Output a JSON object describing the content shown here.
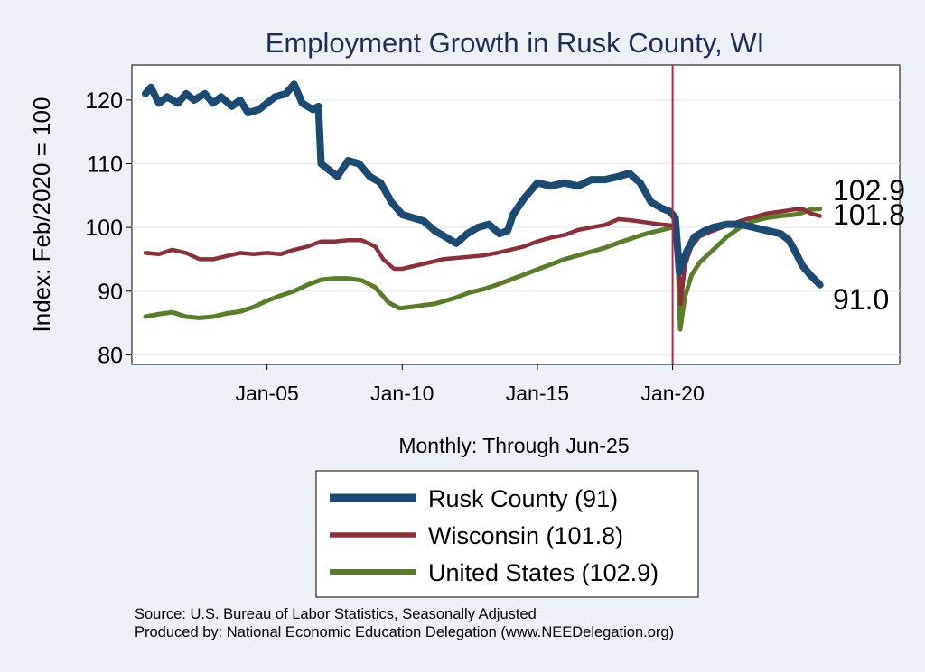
{
  "chart_data": {
    "type": "line",
    "title": "Employment Growth in Rusk  County, WI",
    "ylabel": "Index: Feb/2020 = 100",
    "xlabel": "Monthly: Through Jun-25",
    "ylim": [
      78.5,
      125.5
    ],
    "xlim": [
      2000.0,
      2028.4
    ],
    "yticks": [
      80,
      90,
      100,
      110,
      120
    ],
    "xticks": [
      {
        "label": "Jan-05",
        "value": 2005.0
      },
      {
        "label": "Jan-10",
        "value": 2010.0
      },
      {
        "label": "Jan-15",
        "value": 2015.0
      },
      {
        "label": "Jan-20",
        "value": 2020.0
      }
    ],
    "reference_line_x": 2020.0,
    "grid": true,
    "legend_position": "bottom",
    "series": [
      {
        "name": "Rusk  County (91)",
        "color": "#1b4a72",
        "end_label": "91.0",
        "points": [
          [
            2000.5,
            121
          ],
          [
            2000.7,
            122
          ],
          [
            2001.0,
            119.5
          ],
          [
            2001.3,
            120.5
          ],
          [
            2001.7,
            119.5
          ],
          [
            2002.0,
            121
          ],
          [
            2002.3,
            120
          ],
          [
            2002.7,
            121
          ],
          [
            2003.0,
            119.5
          ],
          [
            2003.3,
            120.5
          ],
          [
            2003.7,
            119
          ],
          [
            2004.0,
            120
          ],
          [
            2004.3,
            118
          ],
          [
            2004.7,
            118.5
          ],
          [
            2005.0,
            119.5
          ],
          [
            2005.3,
            120.5
          ],
          [
            2005.7,
            121
          ],
          [
            2006.0,
            122.5
          ],
          [
            2006.3,
            119.5
          ],
          [
            2006.7,
            118.5
          ],
          [
            2006.9,
            119
          ],
          [
            2007.0,
            110
          ],
          [
            2007.3,
            109
          ],
          [
            2007.6,
            108
          ],
          [
            2008.0,
            110.5
          ],
          [
            2008.4,
            110
          ],
          [
            2008.8,
            108
          ],
          [
            2009.2,
            107
          ],
          [
            2009.6,
            104
          ],
          [
            2010.0,
            102
          ],
          [
            2010.4,
            101.5
          ],
          [
            2010.8,
            101
          ],
          [
            2011.2,
            99.5
          ],
          [
            2011.6,
            98.5
          ],
          [
            2012.0,
            97.5
          ],
          [
            2012.4,
            99
          ],
          [
            2012.8,
            100
          ],
          [
            2013.2,
            100.5
          ],
          [
            2013.6,
            99
          ],
          [
            2013.9,
            99.5
          ],
          [
            2014.1,
            102
          ],
          [
            2014.5,
            104.5
          ],
          [
            2015.0,
            107
          ],
          [
            2015.5,
            106.5
          ],
          [
            2016.0,
            107
          ],
          [
            2016.5,
            106.5
          ],
          [
            2017.0,
            107.5
          ],
          [
            2017.5,
            107.5
          ],
          [
            2018.0,
            108
          ],
          [
            2018.4,
            108.5
          ],
          [
            2018.8,
            107
          ],
          [
            2019.2,
            104
          ],
          [
            2019.6,
            103
          ],
          [
            2019.9,
            102.5
          ],
          [
            2020.1,
            101.5
          ],
          [
            2020.25,
            93
          ],
          [
            2020.5,
            96
          ],
          [
            2020.8,
            98.5
          ],
          [
            2021.2,
            99.5
          ],
          [
            2021.5,
            100
          ],
          [
            2022.0,
            100.5
          ],
          [
            2022.5,
            100.5
          ],
          [
            2023.0,
            100
          ],
          [
            2023.5,
            99.5
          ],
          [
            2024.0,
            99
          ],
          [
            2024.3,
            98
          ],
          [
            2024.5,
            96.5
          ],
          [
            2024.8,
            94
          ],
          [
            2025.1,
            92.5
          ],
          [
            2025.45,
            91
          ]
        ]
      },
      {
        "name": "Wisconsin (101.8)",
        "color": "#8c2f39",
        "end_label": "101.8",
        "points": [
          [
            2000.5,
            96
          ],
          [
            2001.0,
            95.8
          ],
          [
            2001.5,
            96.5
          ],
          [
            2002.0,
            96
          ],
          [
            2002.5,
            95
          ],
          [
            2003.0,
            95
          ],
          [
            2003.5,
            95.5
          ],
          [
            2004.0,
            96
          ],
          [
            2004.5,
            95.8
          ],
          [
            2005.0,
            96
          ],
          [
            2005.5,
            95.8
          ],
          [
            2006.0,
            96.5
          ],
          [
            2006.5,
            97
          ],
          [
            2007.0,
            97.8
          ],
          [
            2007.5,
            97.8
          ],
          [
            2008.0,
            98
          ],
          [
            2008.5,
            98
          ],
          [
            2009.0,
            97
          ],
          [
            2009.3,
            95
          ],
          [
            2009.7,
            93.5
          ],
          [
            2010.0,
            93.5
          ],
          [
            2010.5,
            94
          ],
          [
            2011.0,
            94.5
          ],
          [
            2011.5,
            95
          ],
          [
            2012.0,
            95.2
          ],
          [
            2012.5,
            95.4
          ],
          [
            2013.0,
            95.6
          ],
          [
            2013.5,
            96
          ],
          [
            2014.0,
            96.5
          ],
          [
            2014.5,
            97
          ],
          [
            2015.0,
            97.8
          ],
          [
            2015.5,
            98.4
          ],
          [
            2016.0,
            98.8
          ],
          [
            2016.5,
            99.6
          ],
          [
            2017.0,
            100
          ],
          [
            2017.5,
            100.4
          ],
          [
            2018.0,
            101.3
          ],
          [
            2018.5,
            101.1
          ],
          [
            2019.0,
            100.8
          ],
          [
            2019.5,
            100.5
          ],
          [
            2020.0,
            100.3
          ],
          [
            2020.15,
            100
          ],
          [
            2020.3,
            88
          ],
          [
            2020.45,
            94
          ],
          [
            2020.7,
            97
          ],
          [
            2021.0,
            98.6
          ],
          [
            2021.5,
            99.5
          ],
          [
            2022.0,
            100.3
          ],
          [
            2022.5,
            101
          ],
          [
            2023.0,
            101.6
          ],
          [
            2023.5,
            102.2
          ],
          [
            2024.0,
            102.5
          ],
          [
            2024.5,
            102.8
          ],
          [
            2024.8,
            102.9
          ],
          [
            2025.1,
            102.2
          ],
          [
            2025.45,
            101.8
          ]
        ]
      },
      {
        "name": "United States (102.9)",
        "color": "#5a7d2a",
        "end_label": "102.9",
        "points": [
          [
            2000.5,
            86
          ],
          [
            2001.0,
            86.4
          ],
          [
            2001.5,
            86.7
          ],
          [
            2002.0,
            86
          ],
          [
            2002.5,
            85.8
          ],
          [
            2003.0,
            86
          ],
          [
            2003.5,
            86.5
          ],
          [
            2004.0,
            86.8
          ],
          [
            2004.5,
            87.5
          ],
          [
            2005.0,
            88.5
          ],
          [
            2005.5,
            89.3
          ],
          [
            2006.0,
            90
          ],
          [
            2006.5,
            91
          ],
          [
            2007.0,
            91.8
          ],
          [
            2007.5,
            92
          ],
          [
            2008.0,
            92
          ],
          [
            2008.5,
            91.7
          ],
          [
            2009.0,
            90.6
          ],
          [
            2009.5,
            88.2
          ],
          [
            2009.9,
            87.3
          ],
          [
            2010.3,
            87.5
          ],
          [
            2010.8,
            87.8
          ],
          [
            2011.2,
            88
          ],
          [
            2011.6,
            88.5
          ],
          [
            2012.0,
            89
          ],
          [
            2012.5,
            89.8
          ],
          [
            2013.0,
            90.3
          ],
          [
            2013.5,
            91
          ],
          [
            2014.0,
            91.8
          ],
          [
            2014.5,
            92.6
          ],
          [
            2015.0,
            93.4
          ],
          [
            2015.5,
            94.2
          ],
          [
            2016.0,
            95
          ],
          [
            2016.5,
            95.6
          ],
          [
            2017.0,
            96.2
          ],
          [
            2017.5,
            96.8
          ],
          [
            2018.0,
            97.6
          ],
          [
            2018.5,
            98.3
          ],
          [
            2019.0,
            99
          ],
          [
            2019.5,
            99.5
          ],
          [
            2020.0,
            100
          ],
          [
            2020.15,
            100
          ],
          [
            2020.28,
            84
          ],
          [
            2020.45,
            89
          ],
          [
            2020.7,
            92.5
          ],
          [
            2021.0,
            94.5
          ],
          [
            2021.5,
            96.5
          ],
          [
            2022.0,
            98.5
          ],
          [
            2022.5,
            100
          ],
          [
            2023.0,
            101
          ],
          [
            2023.5,
            101.5
          ],
          [
            2024.0,
            101.8
          ],
          [
            2024.5,
            102
          ],
          [
            2024.8,
            102.3
          ],
          [
            2025.1,
            102.8
          ],
          [
            2025.45,
            102.9
          ]
        ]
      }
    ]
  },
  "footer": {
    "source_line": "Source: U.S. Bureau of Labor Statistics, Seasonally Adjusted",
    "produced_line": "Produced by: National Economic Education Delegation (www.NEEDelegation.org)"
  }
}
